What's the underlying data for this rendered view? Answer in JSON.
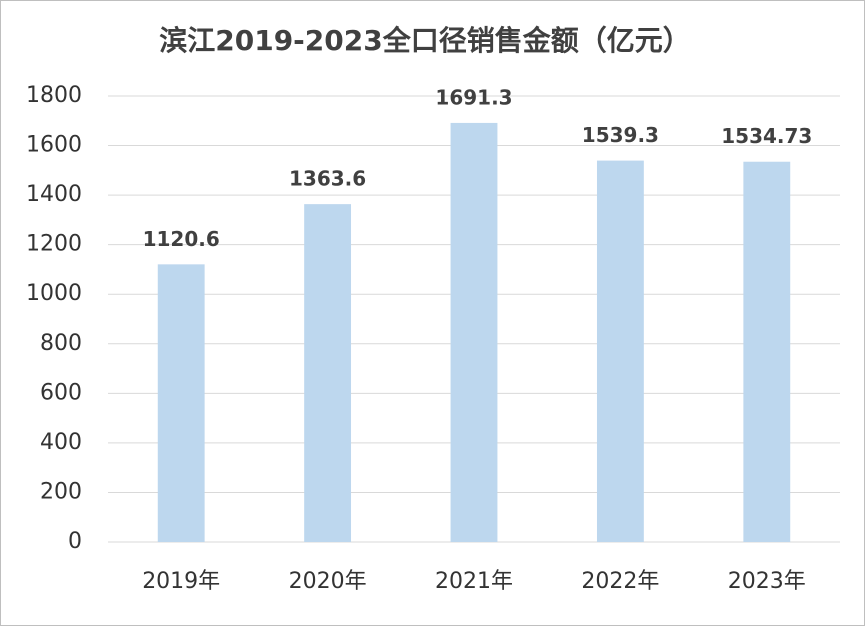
{
  "chart_data": {
    "type": "bar",
    "title": "滨江2019-2023全口径销售金额（亿元）",
    "categories": [
      "2019年",
      "2020年",
      "2021年",
      "2022年",
      "2023年"
    ],
    "values": [
      1120.6,
      1363.6,
      1691.3,
      1539.3,
      1534.73
    ],
    "color": "#bdd7ee",
    "ylim": [
      0,
      1800
    ],
    "yticks": [
      0,
      200,
      400,
      600,
      800,
      1000,
      1200,
      1400,
      1600,
      1800
    ],
    "grid": true
  }
}
